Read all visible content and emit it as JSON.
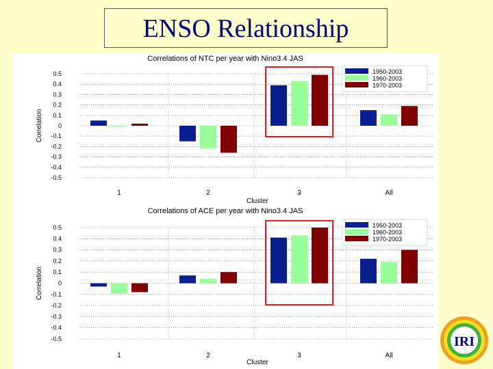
{
  "slide": {
    "title": "ENSO Relationship"
  },
  "logo": {
    "text": "IRI",
    "ring_colors": [
      "#e03020",
      "#f0a020",
      "#f0e020",
      "#40b040",
      "#2080e0"
    ]
  },
  "colors": {
    "s1950": "#0a1f8f",
    "s1960": "#99ff99",
    "s1970": "#800000",
    "highlight": "#e02020"
  },
  "chart_data": [
    {
      "type": "bar",
      "title": "Correlations of NTC per year with Nino3.4 JAS",
      "xlabel": "Cluster",
      "ylabel": "Correlation",
      "categories": [
        "1",
        "2",
        "3",
        "All"
      ],
      "series": [
        {
          "name": "1950-2003",
          "values": [
            0.05,
            -0.15,
            0.39,
            0.15
          ]
        },
        {
          "name": "1960-2003",
          "values": [
            0.0,
            -0.22,
            0.43,
            0.11
          ]
        },
        {
          "name": "1970-2003",
          "values": [
            0.02,
            -0.26,
            0.49,
            0.19
          ]
        }
      ],
      "ylim": [
        -0.5,
        0.5
      ],
      "yticks": [
        "0.5",
        "0.4",
        "0.3",
        "0.2",
        "0.1",
        "0",
        "-0.1",
        "-0.2",
        "-0.3",
        "-0.4",
        "-0.5"
      ],
      "ytick_values": [
        0.5,
        0.4,
        0.3,
        0.2,
        0.1,
        0,
        -0.1,
        -0.2,
        -0.3,
        -0.4,
        -0.5
      ],
      "grid": true,
      "legend": "top-right",
      "highlight_category": "3"
    },
    {
      "type": "bar",
      "title": "Correlations of ACE per year with Nino3.4 JAS",
      "xlabel": "Cluster",
      "ylabel": "Correlation",
      "categories": [
        "1",
        "2",
        "3",
        "All"
      ],
      "series": [
        {
          "name": "1950-2003",
          "values": [
            -0.03,
            0.07,
            0.41,
            0.22
          ]
        },
        {
          "name": "1960-2003",
          "values": [
            -0.09,
            0.04,
            0.43,
            0.19
          ]
        },
        {
          "name": "1970-2003",
          "values": [
            -0.08,
            0.1,
            0.5,
            0.3
          ]
        }
      ],
      "ylim": [
        -0.5,
        0.5
      ],
      "yticks": [
        "0.5",
        "0.4",
        "0.3",
        "0.2",
        "0.1",
        "0",
        "-0.1",
        "-0.2",
        "-0.3",
        "-0.4",
        "-0.5"
      ],
      "ytick_values": [
        0.5,
        0.4,
        0.3,
        0.2,
        0.1,
        0,
        -0.1,
        -0.2,
        -0.3,
        -0.4,
        -0.5
      ],
      "grid": true,
      "legend": "top-right",
      "highlight_category": "3"
    }
  ]
}
